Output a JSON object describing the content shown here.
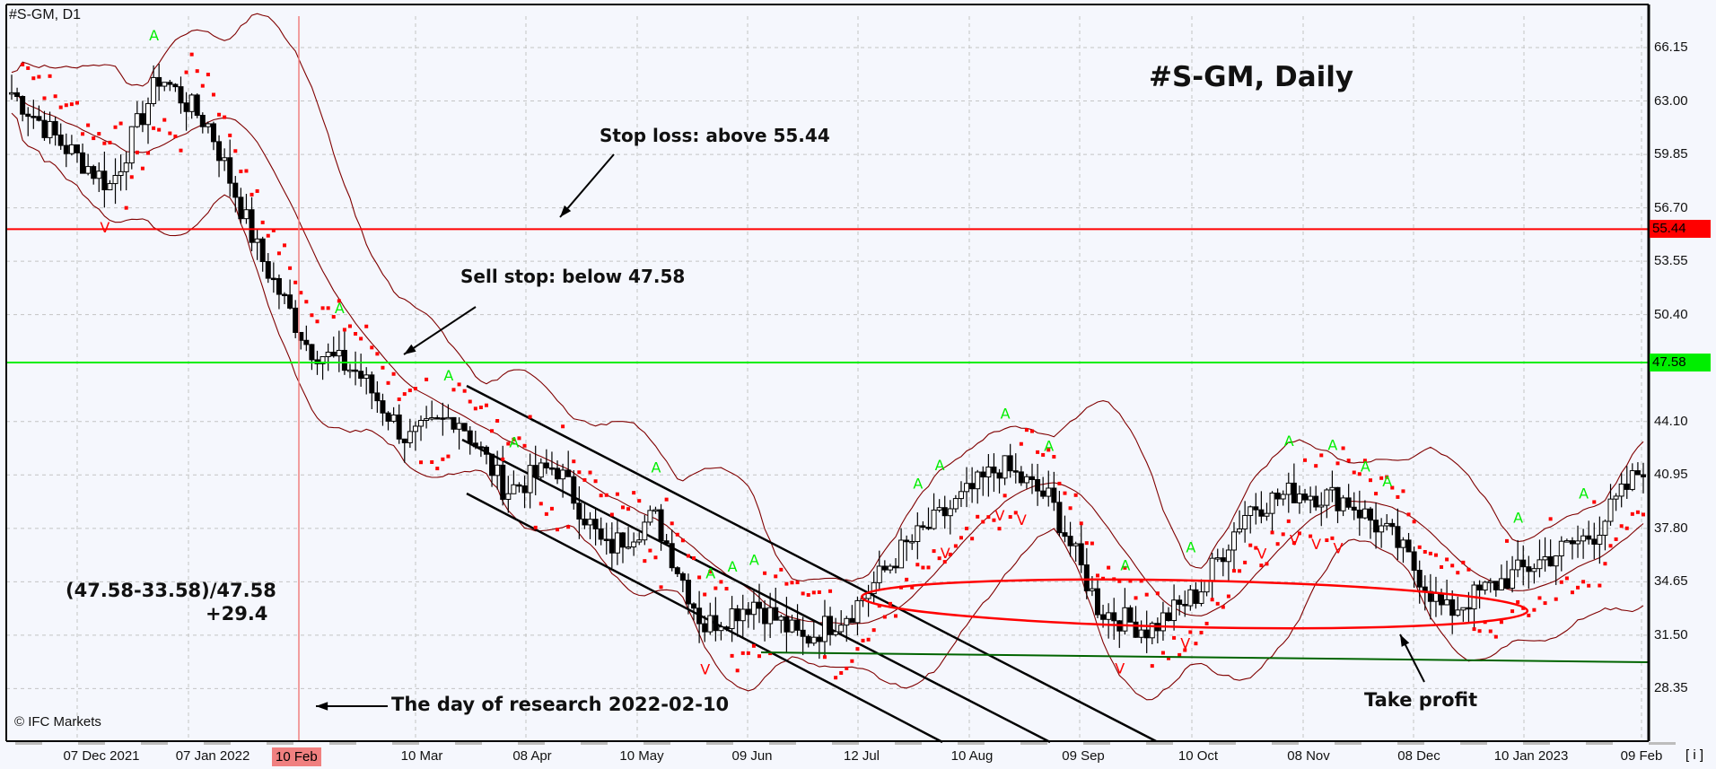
{
  "header": {
    "symbol_label": "#S-GM, D1",
    "title": "#S-GM, Daily",
    "copyright": "© IFC Markets",
    "info_button": "[ i ]"
  },
  "annotations": {
    "stop_loss": "Stop loss: above 55.44",
    "sell_stop": "Sell stop: below 47.58",
    "formula": "(47.58-33.58)/47.58",
    "result": "+29.4",
    "research_day": "The day of research 2022-02-10",
    "take_profit": "Take profit"
  },
  "colors": {
    "background": "#f5f7fd",
    "stop_loss_line": "#ff0000",
    "sell_stop_line": "#00ee00",
    "bollinger": "#800000",
    "parabolic_sar": "#ff0000",
    "fractal_up": "#00ee00",
    "fractal_down": "#ff0000",
    "support_line": "#006400",
    "research_line": "#f08080",
    "channel": "#000000"
  },
  "chart_data": {
    "type": "candlestick",
    "title": "#S-GM, Daily",
    "timeframe": "D1",
    "yticks": [
      66.15,
      63.0,
      59.85,
      56.7,
      53.55,
      50.4,
      47.58,
      44.1,
      40.95,
      37.8,
      34.65,
      31.5,
      28.35
    ],
    "ylim": [
      25.9,
      68.6
    ],
    "xticks": [
      "07 Dec 2021",
      "07 Jan 2022",
      "10 Feb",
      "10 Mar",
      "08 Apr",
      "10 May",
      "09 Jun",
      "12 Jul",
      "10 Aug",
      "09 Sep",
      "10 Oct",
      "08 Nov",
      "08 Dec",
      "10 Jan 2023",
      "09 Feb"
    ],
    "levels": {
      "stop_loss": 55.44,
      "sell_stop": 47.58,
      "take_profit": 33.58
    },
    "highlighted_date": "10 Feb",
    "research_date": "2022-02-10",
    "close_path": [
      {
        "date": "Nov 2021",
        "close": 63.5
      },
      {
        "date": "07 Dec 2021",
        "close": 60.5
      },
      {
        "date": "20 Dec 2021",
        "close": 58.0
      },
      {
        "date": "07 Jan 2022",
        "close": 64.5
      },
      {
        "date": "18 Jan 2022",
        "close": 61.5
      },
      {
        "date": "27 Jan 2022",
        "close": 54.0
      },
      {
        "date": "10 Feb",
        "close": 48.5
      },
      {
        "date": "24 Feb",
        "close": 47.0
      },
      {
        "date": "10 Mar",
        "close": 43.0
      },
      {
        "date": "22 Mar",
        "close": 44.5
      },
      {
        "date": "08 Apr",
        "close": 40.0
      },
      {
        "date": "25 Apr",
        "close": 41.5
      },
      {
        "date": "10 May",
        "close": 36.5
      },
      {
        "date": "25 May",
        "close": 38.5
      },
      {
        "date": "09 Jun",
        "close": 32.0
      },
      {
        "date": "22 Jun",
        "close": 33.5
      },
      {
        "date": "05 Jul",
        "close": 31.2
      },
      {
        "date": "12 Jul",
        "close": 33.0
      },
      {
        "date": "27 Jul",
        "close": 36.5
      },
      {
        "date": "10 Aug",
        "close": 39.0
      },
      {
        "date": "01 Sep",
        "close": 41.5
      },
      {
        "date": "09 Sep",
        "close": 39.5
      },
      {
        "date": "23 Sep",
        "close": 33.0
      },
      {
        "date": "10 Oct",
        "close": 31.8
      },
      {
        "date": "20 Oct",
        "close": 34.0
      },
      {
        "date": "01 Nov",
        "close": 39.0
      },
      {
        "date": "08 Nov",
        "close": 40.0
      },
      {
        "date": "25 Nov",
        "close": 39.5
      },
      {
        "date": "08 Dec",
        "close": 37.0
      },
      {
        "date": "20 Dec",
        "close": 32.8
      },
      {
        "date": "30 Dec",
        "close": 34.5
      },
      {
        "date": "10 Jan 2023",
        "close": 36.0
      },
      {
        "date": "25 Jan 2023",
        "close": 37.5
      },
      {
        "date": "09 Feb",
        "close": 41.5
      }
    ],
    "indicators": [
      "Bollinger Bands",
      "Parabolic SAR",
      "Fractals"
    ],
    "drawings": [
      "descending channel (3 parallel lines)",
      "horizontal support ~30.5",
      "ellipse around 32.5-34.5 zone"
    ]
  }
}
